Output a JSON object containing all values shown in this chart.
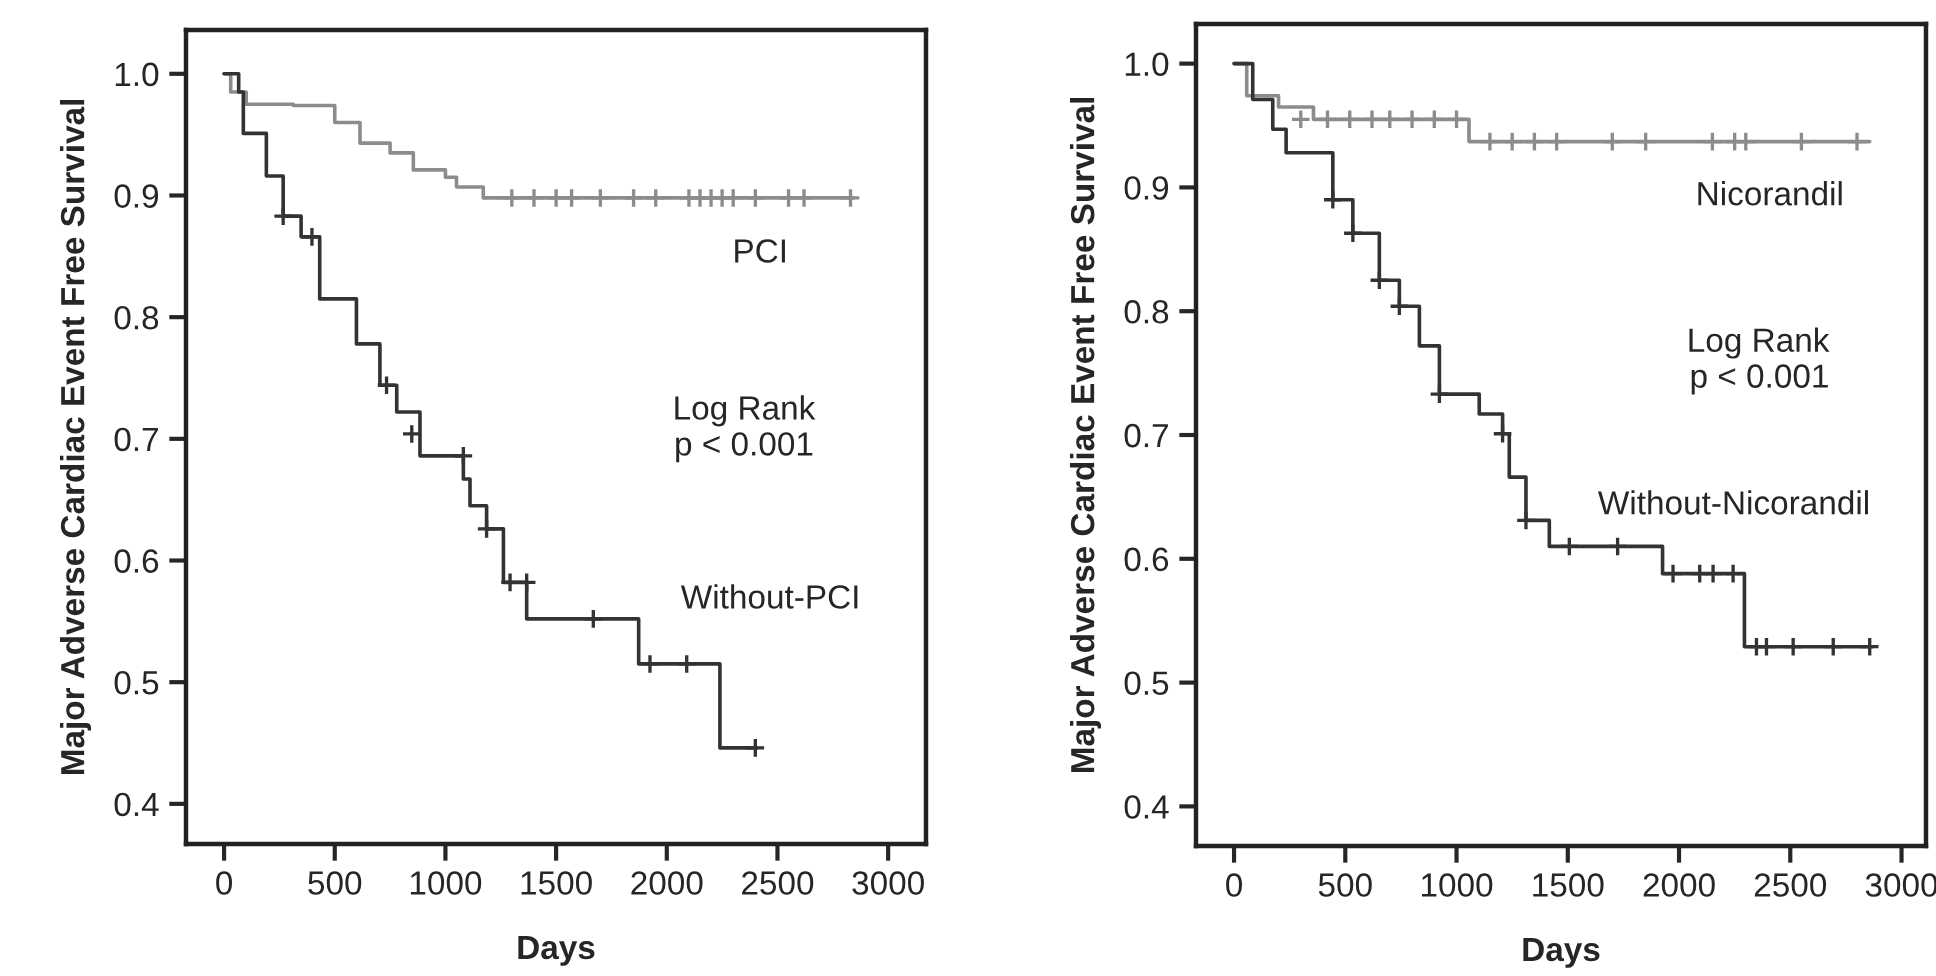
{
  "chart_data": [
    {
      "type": "step",
      "xlabel": "Days",
      "ylabel": "Major Adverse Cardiac Event Free Survival",
      "xlim": [
        -172,
        3171
      ],
      "ylim": [
        0.367,
        1.036
      ],
      "xticks": [
        0,
        500,
        1000,
        1500,
        2000,
        2500,
        3000
      ],
      "yticks": [
        {
          "value": 0.4,
          "label": "0.4"
        },
        {
          "value": 0.5,
          "label": "0.5"
        },
        {
          "value": 0.6,
          "label": "0.6"
        },
        {
          "value": 0.7,
          "label": "0.7"
        },
        {
          "value": 0.8,
          "label": "0.8"
        },
        {
          "value": 0.9,
          "label": "0.9"
        },
        {
          "value": 1.0,
          "label": "1.0"
        }
      ],
      "grid": false,
      "legend": false,
      "line_style": "solid",
      "marker": "none",
      "annotations": [
        "PCI",
        "Log Rank\np < 0.001",
        "Without-PCI"
      ],
      "series": [
        {
          "color": "#8c8c8c",
          "x": [
            0,
            30,
            100,
            313,
            500,
            614,
            750,
            855,
            1000,
            1050,
            1171,
            2843
          ],
          "values": [
            1.0,
            0.985,
            0.975,
            0.974,
            0.96,
            0.943,
            0.935,
            0.921,
            0.915,
            0.907,
            0.898,
            0.898
          ]
        },
        {
          "color": "#333333",
          "x": [
            0,
            66,
            87,
            191,
            267,
            348,
            432,
            598,
            704,
            780,
            885,
            1081,
            1111,
            1186,
            1262,
            1367,
            1873,
            2240,
            2406
          ],
          "values": [
            1.0,
            0.985,
            0.951,
            0.916,
            0.883,
            0.866,
            0.815,
            0.778,
            0.744,
            0.722,
            0.686,
            0.667,
            0.645,
            0.626,
            0.582,
            0.552,
            0.515,
            0.446,
            0.446
          ]
        },
        {
          "type": "scatter",
          "marker": "cross",
          "color": "#8c8c8c",
          "x": [
            1300,
            1400,
            1500,
            1570,
            1700,
            1850,
            1950,
            2100,
            2150,
            2200,
            2250,
            2300,
            2400,
            2550,
            2620,
            2830
          ],
          "values": [
            0.898,
            0.898,
            0.898,
            0.898,
            0.898,
            0.898,
            0.898,
            0.898,
            0.898,
            0.898,
            0.898,
            0.898,
            0.898,
            0.898,
            0.898,
            0.898
          ]
        },
        {
          "type": "scatter",
          "marker": "cross",
          "color": "#333333",
          "x": [
            267,
            397,
            734,
            848,
            1081,
            1186,
            1292,
            1367,
            1668,
            1924,
            2090,
            2400
          ],
          "values": [
            0.883,
            0.866,
            0.744,
            0.704,
            0.686,
            0.626,
            0.582,
            0.582,
            0.552,
            0.515,
            0.515,
            0.446
          ]
        }
      ]
    },
    {
      "type": "step",
      "xlabel": "Days",
      "ylabel": "Major Adverse Cardiac Event Free Survival",
      "xlim": [
        -171,
        3110
      ],
      "ylim": [
        0.368,
        1.032
      ],
      "xticks": [
        0,
        500,
        1000,
        1500,
        2000,
        2500,
        3000
      ],
      "yticks": [
        {
          "value": 0.4,
          "label": "0.4"
        },
        {
          "value": 0.5,
          "label": "0.5"
        },
        {
          "value": 0.6,
          "label": "0.6"
        },
        {
          "value": 0.7,
          "label": "0.7"
        },
        {
          "value": 0.8,
          "label": "0.8"
        },
        {
          "value": 0.9,
          "label": "0.9"
        },
        {
          "value": 1.0,
          "label": "1.0"
        }
      ],
      "grid": false,
      "legend": false,
      "line_style": "solid",
      "marker": "none",
      "annotations": [
        "Nicorandil",
        "Log Rank\np < 0.001",
        "Without-Nicorandil"
      ],
      "series": [
        {
          "color": "#8c8c8c",
          "x": [
            0,
            57,
            200,
            357,
            1056,
            2857
          ],
          "values": [
            1.0,
            0.974,
            0.965,
            0.955,
            0.937,
            0.937
          ]
        },
        {
          "color": "#333333",
          "x": [
            0,
            84,
            174,
            234,
            444,
            534,
            653,
            743,
            833,
            923,
            1102,
            1207,
            1237,
            1312,
            1417,
            1926,
            2294,
            2869
          ],
          "values": [
            1.0,
            0.971,
            0.947,
            0.928,
            0.89,
            0.863,
            0.825,
            0.804,
            0.772,
            0.733,
            0.717,
            0.701,
            0.666,
            0.631,
            0.61,
            0.588,
            0.529,
            0.529
          ]
        },
        {
          "type": "scatter",
          "marker": "cross",
          "color": "#8c8c8c",
          "x": [
            300,
            420,
            520,
            620,
            700,
            800,
            900,
            1000,
            1150,
            1250,
            1350,
            1450,
            1700,
            1850,
            2150,
            2250,
            2300,
            2550,
            2800
          ],
          "values": [
            0.955,
            0.955,
            0.955,
            0.955,
            0.955,
            0.955,
            0.955,
            0.955,
            0.937,
            0.937,
            0.937,
            0.937,
            0.937,
            0.937,
            0.937,
            0.937,
            0.937,
            0.937,
            0.937
          ]
        },
        {
          "type": "scatter",
          "marker": "cross",
          "color": "#333333",
          "x": [
            444,
            534,
            653,
            743,
            923,
            1207,
            1312,
            1507,
            1724,
            1973,
            2093,
            2153,
            2243,
            2348,
            2393,
            2513,
            2693,
            2857
          ],
          "values": [
            0.89,
            0.863,
            0.825,
            0.804,
            0.733,
            0.701,
            0.631,
            0.61,
            0.61,
            0.588,
            0.588,
            0.588,
            0.588,
            0.529,
            0.529,
            0.529,
            0.529,
            0.529
          ]
        }
      ]
    }
  ]
}
